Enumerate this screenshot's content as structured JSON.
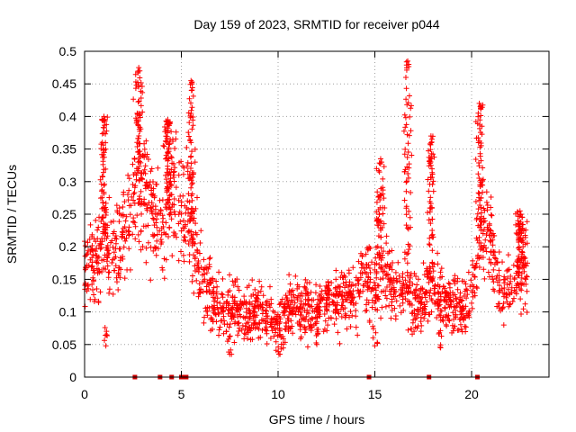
{
  "chart_data": {
    "type": "scatter",
    "title": "Day 159 of 2023, SRMTID for receiver p044",
    "xlabel": "GPS time / hours",
    "ylabel": "SRMTID / TECUs",
    "xlim": [
      0,
      24
    ],
    "ylim": [
      0,
      0.5
    ],
    "x_ticks": [
      0,
      5,
      10,
      15,
      20
    ],
    "x_tick_labels": [
      "0",
      "5",
      "10",
      "15",
      "20"
    ],
    "y_ticks": [
      0,
      0.05,
      0.1,
      0.15,
      0.2,
      0.25,
      0.3,
      0.35,
      0.4,
      0.45,
      0.5
    ],
    "y_tick_labels": [
      "0",
      "0.05",
      "0.1",
      "0.15",
      "0.2",
      "0.25",
      "0.3",
      "0.35",
      "0.4",
      "0.45",
      "0.5"
    ],
    "grid": true,
    "marker": "plus",
    "color": "#ff0000",
    "zero_markers_x": [
      2.6,
      3.9,
      4.5,
      5.0,
      5.1,
      5.25,
      14.7,
      17.8,
      20.3
    ],
    "profile": [
      {
        "x": 0.0,
        "y": 0.15
      },
      {
        "x": 0.5,
        "y": 0.17
      },
      {
        "x": 1.0,
        "y": 0.22
      },
      {
        "x": 1.5,
        "y": 0.19
      },
      {
        "x": 2.0,
        "y": 0.22
      },
      {
        "x": 2.5,
        "y": 0.28
      },
      {
        "x": 3.0,
        "y": 0.3
      },
      {
        "x": 3.5,
        "y": 0.26
      },
      {
        "x": 4.0,
        "y": 0.22
      },
      {
        "x": 4.5,
        "y": 0.29
      },
      {
        "x": 5.0,
        "y": 0.27
      },
      {
        "x": 5.5,
        "y": 0.23
      },
      {
        "x": 6.0,
        "y": 0.16
      },
      {
        "x": 6.5,
        "y": 0.13
      },
      {
        "x": 7.0,
        "y": 0.11
      },
      {
        "x": 7.5,
        "y": 0.1
      },
      {
        "x": 8.0,
        "y": 0.1
      },
      {
        "x": 8.5,
        "y": 0.1
      },
      {
        "x": 9.0,
        "y": 0.11
      },
      {
        "x": 9.5,
        "y": 0.09
      },
      {
        "x": 10.0,
        "y": 0.08
      },
      {
        "x": 10.5,
        "y": 0.1
      },
      {
        "x": 11.0,
        "y": 0.11
      },
      {
        "x": 11.5,
        "y": 0.1
      },
      {
        "x": 12.0,
        "y": 0.1
      },
      {
        "x": 12.5,
        "y": 0.11
      },
      {
        "x": 13.0,
        "y": 0.12
      },
      {
        "x": 13.5,
        "y": 0.12
      },
      {
        "x": 14.0,
        "y": 0.13
      },
      {
        "x": 14.5,
        "y": 0.15
      },
      {
        "x": 15.0,
        "y": 0.14
      },
      {
        "x": 15.5,
        "y": 0.16
      },
      {
        "x": 16.0,
        "y": 0.13
      },
      {
        "x": 16.5,
        "y": 0.14
      },
      {
        "x": 17.0,
        "y": 0.11
      },
      {
        "x": 17.5,
        "y": 0.12
      },
      {
        "x": 18.0,
        "y": 0.15
      },
      {
        "x": 18.5,
        "y": 0.11
      },
      {
        "x": 19.0,
        "y": 0.11
      },
      {
        "x": 19.5,
        "y": 0.1
      },
      {
        "x": 20.0,
        "y": 0.13
      },
      {
        "x": 20.5,
        "y": 0.22
      },
      {
        "x": 21.0,
        "y": 0.2
      },
      {
        "x": 21.5,
        "y": 0.14
      },
      {
        "x": 22.0,
        "y": 0.13
      },
      {
        "x": 22.5,
        "y": 0.16
      },
      {
        "x": 22.9,
        "y": 0.17
      }
    ],
    "peaks": [
      {
        "x": 1.0,
        "y": 0.4
      },
      {
        "x": 2.8,
        "y": 0.475
      },
      {
        "x": 4.3,
        "y": 0.395
      },
      {
        "x": 5.5,
        "y": 0.455
      },
      {
        "x": 15.3,
        "y": 0.335
      },
      {
        "x": 16.7,
        "y": 0.485
      },
      {
        "x": 17.9,
        "y": 0.37
      },
      {
        "x": 20.4,
        "y": 0.42
      },
      {
        "x": 22.5,
        "y": 0.255
      }
    ],
    "dips": [
      {
        "x": 1.1,
        "y": 0.048
      },
      {
        "x": 7.5,
        "y": 0.035
      },
      {
        "x": 10.1,
        "y": 0.035
      },
      {
        "x": 12.0,
        "y": 0.05
      },
      {
        "x": 15.0,
        "y": 0.048
      },
      {
        "x": 18.4,
        "y": 0.045
      }
    ]
  }
}
